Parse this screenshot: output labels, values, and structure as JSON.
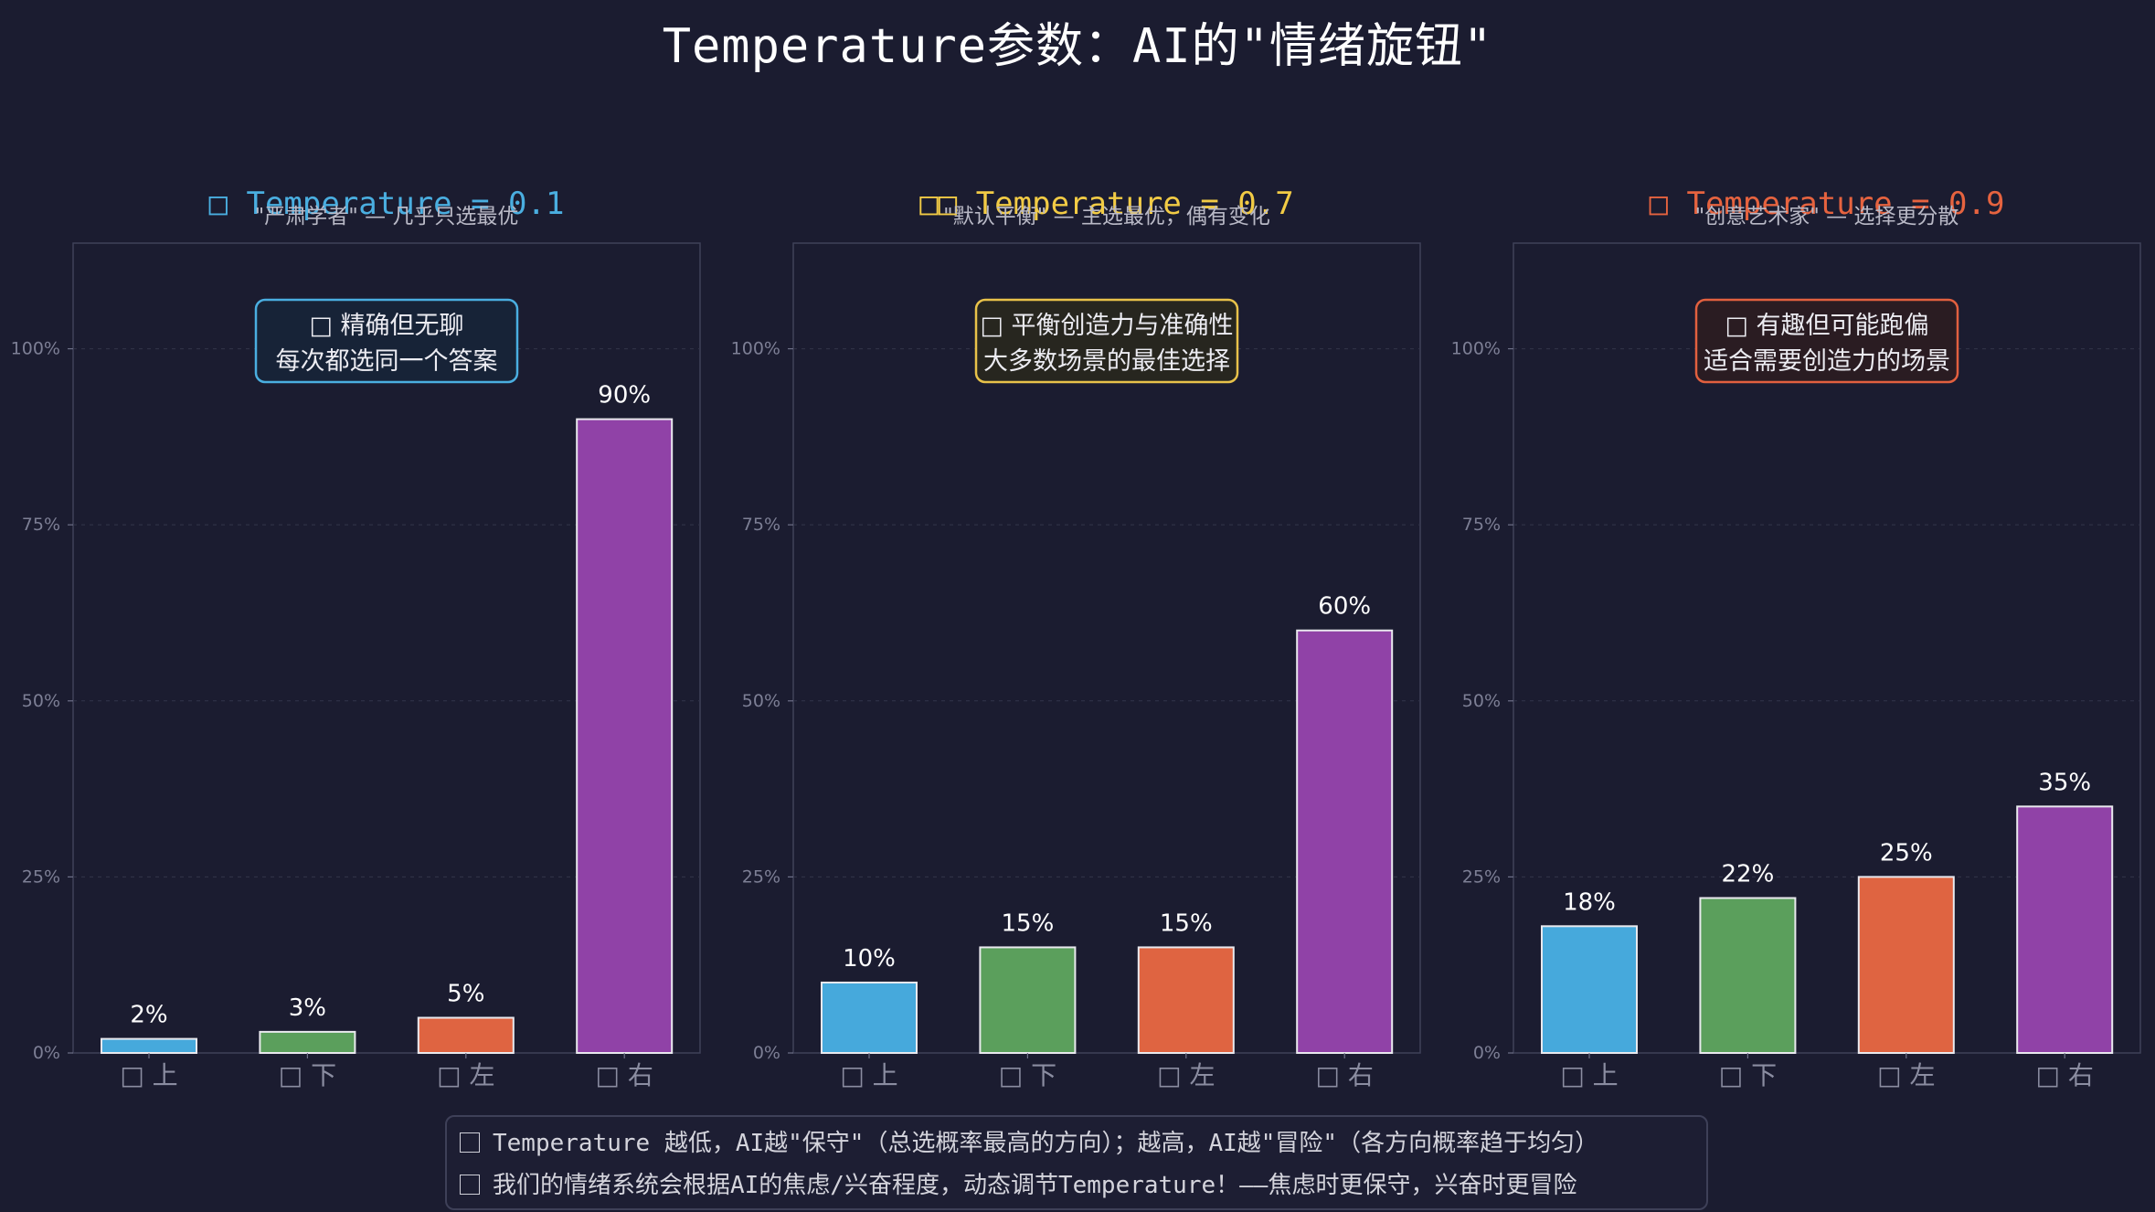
{
  "title": "Temperature参数：AI的\"情绪旋钮\"",
  "chart_data": [
    {
      "type": "bar",
      "title": "Temperature = 0.1",
      "title_icon": "□",
      "subtitle": "\"严肃学者\" — 几乎只选最优",
      "accent_color": "#4aaee0",
      "categories": [
        "上",
        "下",
        "左",
        "右"
      ],
      "category_icon": "□",
      "values": [
        2,
        3,
        5,
        90
      ],
      "value_labels": [
        "2%",
        "3%",
        "5%",
        "90%"
      ],
      "colors": [
        "#46a9dc",
        "#5b9f5c",
        "#df6441",
        "#9042a7"
      ],
      "ylim": [
        0,
        115
      ],
      "yticks": [
        0,
        25,
        50,
        75,
        100
      ],
      "ytick_labels": [
        "0%",
        "25%",
        "50%",
        "75%",
        "100%"
      ],
      "grid": true,
      "annotation": {
        "icon": "□",
        "line1": "精确但无聊",
        "line2": "每次都选同一个答案",
        "border": "#4aaee0",
        "bg": "#172337"
      }
    },
    {
      "type": "bar",
      "title": "Temperature = 0.7",
      "title_icon": "□□",
      "subtitle": "\"默认平衡\" — 主选最优，偶有变化",
      "accent_color": "#f2cb45",
      "categories": [
        "上",
        "下",
        "左",
        "右"
      ],
      "category_icon": "□",
      "values": [
        10,
        15,
        15,
        60
      ],
      "value_labels": [
        "10%",
        "15%",
        "15%",
        "60%"
      ],
      "colors": [
        "#46a9dc",
        "#5b9f5c",
        "#df6441",
        "#9042a7"
      ],
      "ylim": [
        0,
        115
      ],
      "yticks": [
        0,
        25,
        50,
        75,
        100
      ],
      "ytick_labels": [
        "0%",
        "25%",
        "50%",
        "75%",
        "100%"
      ],
      "grid": true,
      "annotation": {
        "icon": "□",
        "line1": "平衡创造力与准确性",
        "line2": "大多数场景的最佳选择",
        "border": "#e8c24a",
        "bg": "#27261f"
      }
    },
    {
      "type": "bar",
      "title": "Temperature = 0.9",
      "title_icon": "□",
      "subtitle": "\"创意艺术家\" — 选择更分散",
      "accent_color": "#e6633f",
      "categories": [
        "上",
        "下",
        "左",
        "右"
      ],
      "category_icon": "□",
      "values": [
        18,
        22,
        25,
        35
      ],
      "value_labels": [
        "18%",
        "22%",
        "25%",
        "35%"
      ],
      "colors": [
        "#46a9dc",
        "#5b9f5c",
        "#df6441",
        "#9042a7"
      ],
      "ylim": [
        0,
        115
      ],
      "yticks": [
        0,
        25,
        50,
        75,
        100
      ],
      "ytick_labels": [
        "0%",
        "25%",
        "50%",
        "75%",
        "100%"
      ],
      "grid": true,
      "annotation": {
        "icon": "□",
        "line1": "有趣但可能跑偏",
        "line2": "适合需要创造力的场景",
        "border": "#e2603f",
        "bg": "#2a1c22"
      }
    }
  ],
  "footer": {
    "line1": "Temperature 越低，AI越\"保守\"（总选概率最高的方向）；越高，AI越\"冒险\"（各方向概率趋于均匀）",
    "line2": "我们的情绪系统会根据AI的焦虑/兴奋程度，动态调节Temperature！——焦虑时更保守，兴奋时更冒险"
  }
}
